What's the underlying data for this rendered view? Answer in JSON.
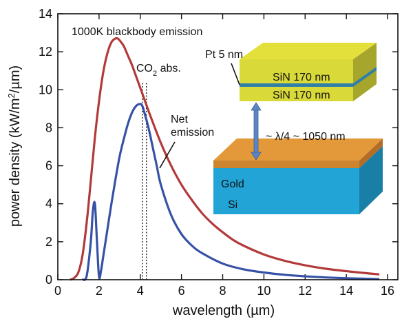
{
  "chart_data": {
    "type": "line",
    "xlabel": "wavelength (µm)",
    "ylabel_pre": "power density (kW/m",
    "ylabel_sup": "2",
    "ylabel_post": "/µm)",
    "xlim": [
      0,
      16.5
    ],
    "ylim": [
      0,
      14
    ],
    "xticks": [
      0,
      2,
      4,
      6,
      8,
      10,
      12,
      14,
      16
    ],
    "yticks": [
      0,
      2,
      4,
      6,
      8,
      10,
      12,
      14
    ],
    "grid": false,
    "series": [
      {
        "name": "1000K blackbody emission",
        "color": "#b23a3a",
        "x": [
          0.6,
          0.8,
          1.0,
          1.2,
          1.4,
          1.6,
          1.8,
          2.0,
          2.2,
          2.4,
          2.6,
          2.8,
          2.9,
          3.0,
          3.2,
          3.4,
          3.6,
          3.8,
          4.0,
          4.2,
          4.5,
          5.0,
          5.5,
          6.0,
          6.5,
          7.0,
          7.5,
          8.0,
          8.5,
          9.0,
          10.0,
          11.0,
          12.0,
          13.0,
          14.0,
          15.0,
          15.6
        ],
        "y": [
          0.0,
          0.1,
          0.4,
          1.3,
          3.0,
          5.2,
          7.5,
          9.4,
          10.9,
          11.9,
          12.5,
          12.7,
          12.7,
          12.6,
          12.3,
          11.8,
          11.3,
          10.7,
          10.1,
          9.5,
          8.6,
          7.2,
          6.0,
          5.0,
          4.2,
          3.5,
          2.95,
          2.5,
          2.1,
          1.8,
          1.33,
          1.0,
          0.76,
          0.58,
          0.45,
          0.34,
          0.28
        ]
      },
      {
        "name": "Net emission",
        "color": "#3651a6",
        "x": [
          1.2,
          1.4,
          1.6,
          1.7,
          1.8,
          1.9,
          2.0,
          2.1,
          2.2,
          2.4,
          2.6,
          2.8,
          3.0,
          3.2,
          3.4,
          3.6,
          3.8,
          4.0,
          4.1,
          4.2,
          4.4,
          4.6,
          4.8,
          5.0,
          5.5,
          6.0,
          6.5,
          7.0,
          8.0,
          9.0,
          10.0,
          11.0,
          12.0,
          13.0,
          14.0,
          15.0,
          15.6
        ],
        "y": [
          0.0,
          0.2,
          2.0,
          3.6,
          4.0,
          2.0,
          0.15,
          0.5,
          1.2,
          2.6,
          4.0,
          5.3,
          6.5,
          7.4,
          8.2,
          8.8,
          9.15,
          9.25,
          9.15,
          8.8,
          8.0,
          7.0,
          6.0,
          5.0,
          3.4,
          2.4,
          1.8,
          1.4,
          0.85,
          0.55,
          0.38,
          0.26,
          0.18,
          0.12,
          0.08,
          0.05,
          0.03
        ]
      }
    ],
    "co2_lines": [
      4.1,
      4.3
    ],
    "annotations": {
      "blackbody": "1000K blackbody emission",
      "co2_pre": "CO",
      "co2_sub": "2",
      "co2_post": " abs.",
      "net1": "Net",
      "net2": "emission"
    },
    "inset": {
      "pt_label": "Pt 5 nm",
      "sin_top": "SiN 170 nm",
      "sin_bottom": "SiN 170 nm",
      "gap_label": "~ λ/4 ~ 1050 nm",
      "gold_label": "Gold",
      "si_label": "Si",
      "colors": {
        "sin_top": "#e3e03c",
        "sin_front": "#d9d93a",
        "sin_side": "#a6a52c",
        "pt_line": "#2f7fa8",
        "gold_top": "#e3993a",
        "gold_front": "#cf8430",
        "gold_side": "#b36d26",
        "si_front": "#22a5d6",
        "si_side": "#1a7fa6",
        "arrow": "#5b86c5"
      }
    }
  }
}
